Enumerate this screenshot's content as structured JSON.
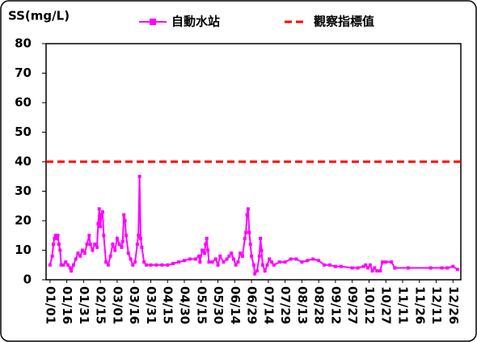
{
  "chart_data": {
    "type": "line",
    "y_label": "SS(mg/L)",
    "ylim": [
      0,
      80
    ],
    "yticks": [
      0,
      10,
      20,
      30,
      40,
      50,
      60,
      70,
      80
    ],
    "xlim": [
      -3.5,
      367
    ],
    "xticks": [
      {
        "value": 0,
        "label": "01/01"
      },
      {
        "value": 15,
        "label": "01/16"
      },
      {
        "value": 30,
        "label": "01/31"
      },
      {
        "value": 45,
        "label": "02/15"
      },
      {
        "value": 60,
        "label": "03/01"
      },
      {
        "value": 75,
        "label": "03/16"
      },
      {
        "value": 90,
        "label": "03/31"
      },
      {
        "value": 105,
        "label": "04/15"
      },
      {
        "value": 120,
        "label": "04/30"
      },
      {
        "value": 135,
        "label": "05/15"
      },
      {
        "value": 150,
        "label": "05/30"
      },
      {
        "value": 165,
        "label": "06/14"
      },
      {
        "value": 180,
        "label": "06/29"
      },
      {
        "value": 195,
        "label": "07/14"
      },
      {
        "value": 210,
        "label": "07/29"
      },
      {
        "value": 225,
        "label": "08/13"
      },
      {
        "value": 240,
        "label": "08/28"
      },
      {
        "value": 255,
        "label": "09/12"
      },
      {
        "value": 270,
        "label": "09/27"
      },
      {
        "value": 285,
        "label": "10/12"
      },
      {
        "value": 300,
        "label": "10/27"
      },
      {
        "value": 315,
        "label": "11/11"
      },
      {
        "value": 330,
        "label": "11/26"
      },
      {
        "value": 345,
        "label": "12/11"
      },
      {
        "value": 360,
        "label": "12/26"
      }
    ],
    "series": [
      {
        "name": "自動水站",
        "color": "#ff00ff",
        "x": [
          0,
          2,
          3,
          4,
          5,
          6,
          7,
          8,
          9,
          10,
          12,
          14,
          16,
          18,
          19,
          21,
          23,
          25,
          27,
          29,
          31,
          33,
          35,
          36,
          38,
          40,
          42,
          43,
          44,
          45,
          46,
          47,
          48,
          50,
          52,
          54,
          56,
          58,
          60,
          62,
          64,
          65,
          66,
          67,
          68,
          70,
          72,
          74,
          76,
          78,
          79,
          80,
          81,
          82,
          84,
          86,
          90,
          95,
          100,
          105,
          110,
          115,
          120,
          125,
          130,
          133,
          134,
          136,
          138,
          139,
          140,
          141,
          142,
          145,
          148,
          150,
          152,
          155,
          158,
          160,
          162,
          164,
          166,
          168,
          170,
          172,
          174,
          175,
          176,
          177,
          178,
          179,
          180,
          182,
          183,
          185,
          187,
          188,
          189,
          190,
          192,
          194,
          196,
          198,
          200,
          205,
          210,
          215,
          220,
          225,
          230,
          235,
          240,
          245,
          250,
          255,
          260,
          270,
          275,
          280,
          282,
          284,
          286,
          288,
          290,
          292,
          295,
          297,
          300,
          305,
          308,
          320,
          340,
          350,
          355,
          360,
          364
        ],
        "values": [
          5,
          8,
          12,
          14,
          15,
          14,
          15,
          12,
          10,
          5,
          5,
          6,
          5,
          4,
          3,
          5,
          7,
          9,
          8,
          10,
          9,
          12,
          15,
          12,
          10,
          12,
          11,
          19,
          24,
          18,
          22,
          23,
          15,
          6,
          5,
          8,
          12,
          10,
          14,
          12,
          11,
          13,
          22,
          20,
          15,
          9,
          7,
          5,
          6,
          12,
          15,
          35,
          14,
          11,
          6,
          5,
          5,
          5,
          5,
          5,
          5.5,
          6,
          6.5,
          7,
          7,
          8,
          6,
          10,
          9,
          12,
          14,
          10,
          6,
          6,
          7,
          5,
          8,
          6,
          7,
          8,
          9,
          7,
          5,
          6,
          9,
          8,
          14,
          16,
          22,
          24,
          16,
          12,
          8,
          5,
          2,
          3,
          8,
          14,
          10,
          5,
          3,
          5,
          7,
          6,
          5,
          6,
          6,
          7,
          7,
          6,
          6.5,
          7,
          6.5,
          5,
          5,
          4.5,
          4.5,
          4,
          4,
          4.5,
          5,
          4,
          5,
          3,
          4,
          3,
          3,
          6,
          6,
          6,
          4,
          4,
          4,
          4,
          4,
          4.5,
          3.5
        ]
      }
    ],
    "reference_lines": [
      {
        "name": "觀察指標值",
        "value": 40,
        "color": "#ff0000"
      }
    ]
  }
}
